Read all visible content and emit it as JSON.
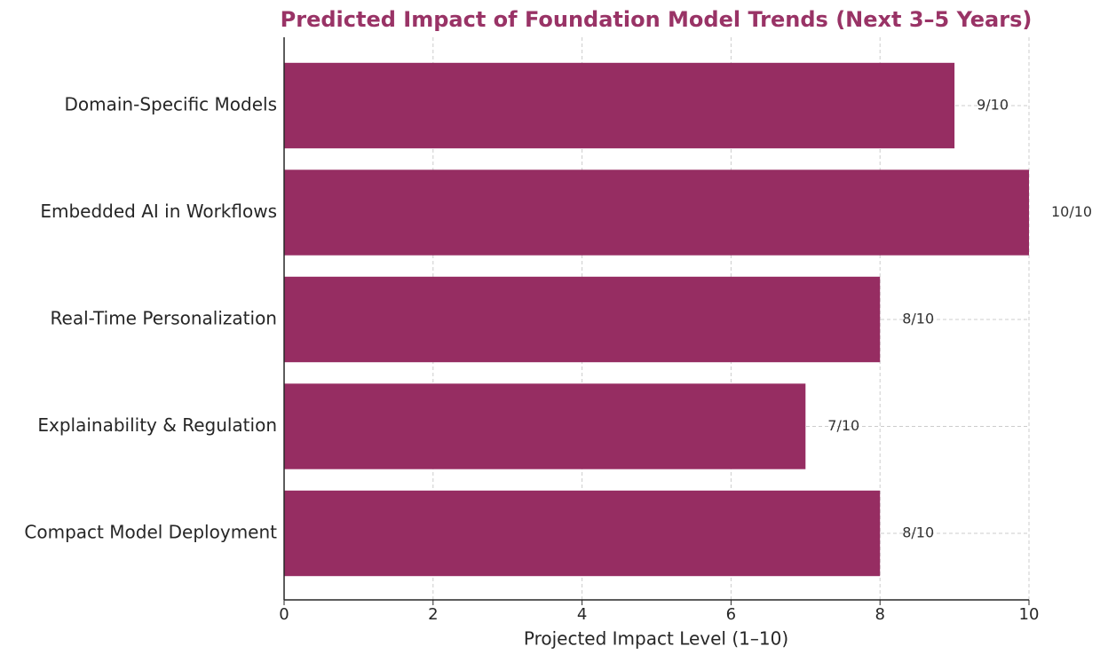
{
  "chart_data": {
    "type": "bar",
    "orientation": "horizontal",
    "title": "Predicted Impact of Foundation Model Trends (Next 3–5 Years)",
    "x_label": "Projected Impact Level (1–10)",
    "categories": [
      "Domain-Specific Models",
      "Embedded AI in Workflows",
      "Real-Time Personalization",
      "Explainability & Regulation",
      "Compact Model Deployment"
    ],
    "values": [
      9,
      10,
      8,
      7,
      8
    ],
    "value_labels": [
      "9/10",
      "10/10",
      "8/10",
      "7/10",
      "8/10"
    ],
    "color": "#962d62",
    "title_color": "#993366",
    "xlim": [
      0,
      10
    ],
    "xticks": [
      0,
      2,
      4,
      6,
      8,
      10
    ],
    "grid": true
  }
}
